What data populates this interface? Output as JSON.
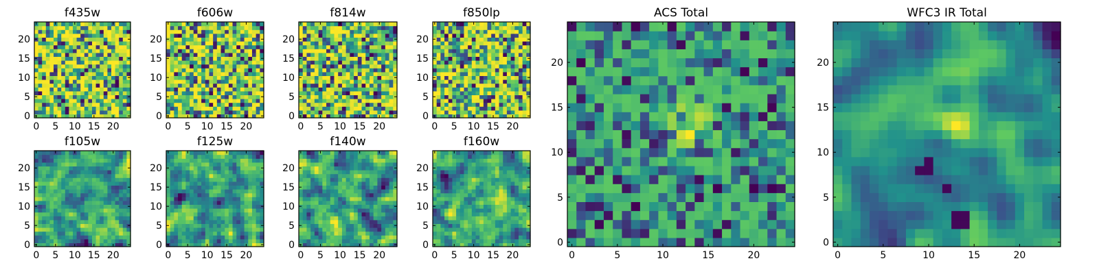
{
  "chart_data": [
    {
      "type": "heatmap",
      "title": "f435w",
      "pattern": "noise",
      "seed": 11,
      "grid_size": 25,
      "xticks": [
        0,
        5,
        10,
        15,
        20
      ],
      "yticks": [
        0,
        5,
        10,
        15,
        20
      ],
      "xlim": [
        -0.5,
        24.5
      ],
      "ylim": [
        -0.5,
        24.5
      ],
      "colormap": "viridis"
    },
    {
      "type": "heatmap",
      "title": "f606w",
      "pattern": "noise",
      "seed": 23,
      "grid_size": 25,
      "xticks": [
        0,
        5,
        10,
        15,
        20
      ],
      "yticks": [
        0,
        5,
        10,
        15,
        20
      ],
      "xlim": [
        -0.5,
        24.5
      ],
      "ylim": [
        -0.5,
        24.5
      ],
      "colormap": "viridis"
    },
    {
      "type": "heatmap",
      "title": "f814w",
      "pattern": "noise",
      "seed": 37,
      "grid_size": 25,
      "xticks": [
        0,
        5,
        10,
        15,
        20
      ],
      "yticks": [
        0,
        5,
        10,
        15,
        20
      ],
      "xlim": [
        -0.5,
        24.5
      ],
      "ylim": [
        -0.5,
        24.5
      ],
      "colormap": "viridis"
    },
    {
      "type": "heatmap",
      "title": "f850lp",
      "pattern": "noise",
      "seed": 41,
      "grid_size": 25,
      "xticks": [
        0,
        5,
        10,
        15,
        20
      ],
      "yticks": [
        0,
        5,
        10,
        15,
        20
      ],
      "xlim": [
        -0.5,
        24.5
      ],
      "ylim": [
        -0.5,
        24.5
      ],
      "colormap": "viridis"
    },
    {
      "type": "heatmap",
      "title": "f105w",
      "pattern": "smooth",
      "seed": 53,
      "grid_size": 25,
      "xticks": [
        0,
        5,
        10,
        15,
        20
      ],
      "yticks": [
        0,
        5,
        10,
        15,
        20
      ],
      "xlim": [
        -0.5,
        24.5
      ],
      "ylim": [
        -0.5,
        24.5
      ],
      "colormap": "viridis"
    },
    {
      "type": "heatmap",
      "title": "f125w",
      "pattern": "smooth",
      "seed": 67,
      "grid_size": 25,
      "xticks": [
        0,
        5,
        10,
        15,
        20
      ],
      "yticks": [
        0,
        5,
        10,
        15,
        20
      ],
      "xlim": [
        -0.5,
        24.5
      ],
      "ylim": [
        -0.5,
        24.5
      ],
      "colormap": "viridis"
    },
    {
      "type": "heatmap",
      "title": "f140w",
      "pattern": "smooth",
      "seed": 79,
      "grid_size": 25,
      "xticks": [
        0,
        5,
        10,
        15,
        20
      ],
      "yticks": [
        0,
        5,
        10,
        15,
        20
      ],
      "xlim": [
        -0.5,
        24.5
      ],
      "ylim": [
        -0.5,
        24.5
      ],
      "colormap": "viridis"
    },
    {
      "type": "heatmap",
      "title": "f160w",
      "pattern": "smooth",
      "seed": 83,
      "grid_size": 25,
      "xticks": [
        0,
        5,
        10,
        15,
        20
      ],
      "yticks": [
        0,
        5,
        10,
        15,
        20
      ],
      "xlim": [
        -0.5,
        24.5
      ],
      "ylim": [
        -0.5,
        24.5
      ],
      "colormap": "viridis"
    },
    {
      "type": "heatmap",
      "title": "ACS Total",
      "pattern": "acs",
      "seed": 97,
      "grid_size": 25,
      "xticks": [
        0,
        5,
        10,
        15,
        20
      ],
      "yticks": [
        0,
        5,
        10,
        15,
        20
      ],
      "xlim": [
        -0.5,
        24.5
      ],
      "ylim": [
        -0.5,
        24.5
      ],
      "colormap": "viridis",
      "peak_center": [
        13,
        13
      ]
    },
    {
      "type": "heatmap",
      "title": "WFC3 IR Total",
      "pattern": "wfc3",
      "seed": 101,
      "grid_size": 25,
      "xticks": [
        0,
        5,
        10,
        15,
        20
      ],
      "yticks": [
        0,
        5,
        10,
        15,
        20
      ],
      "xlim": [
        -0.5,
        24.5
      ],
      "ylim": [
        -0.5,
        24.5
      ],
      "colormap": "viridis",
      "peak_center": [
        13,
        13
      ]
    }
  ],
  "colormap_stops": [
    "#440154",
    "#3b528b",
    "#21918c",
    "#5ec962",
    "#fde725"
  ]
}
